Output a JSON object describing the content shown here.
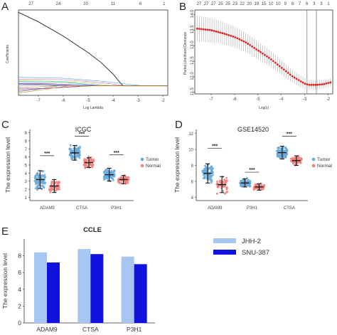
{
  "panel_labels": {
    "A": "A",
    "B": "B",
    "C": "C",
    "D": "D",
    "E": "E"
  },
  "colors": {
    "tumor": "#6aa9d8",
    "normal": "#ef7f7b",
    "jhh2": "#a7c6f1",
    "snu387": "#1212e0",
    "cv_points": "#e02020"
  },
  "chart_data": [
    {
      "id": "A",
      "type": "line",
      "xlabel": "Log Lambda",
      "ylabel": "Coefficients",
      "top_ticks": [
        "27",
        "24",
        "20",
        "11",
        "6",
        "1"
      ],
      "xticks": [
        "-7",
        "-6",
        "-5",
        "-4",
        "-3",
        "-2"
      ],
      "xlim": [
        -7.8,
        -1.8
      ],
      "ylim": [
        -0.2,
        1.6
      ],
      "series": [
        {
          "color": "#222222",
          "x": [
            -7.8,
            -7,
            -6,
            -5,
            -4.5,
            -4,
            -3.8,
            -3.6
          ],
          "y": [
            1.55,
            1.35,
            1.05,
            0.7,
            0.5,
            0.25,
            0.12,
            0.0
          ]
        },
        {
          "color": "#3a9ad9",
          "x": [
            -7.8,
            -6,
            -4.5,
            -3.5,
            -2.8
          ],
          "y": [
            0.18,
            0.16,
            0.1,
            0.04,
            0.0
          ]
        },
        {
          "color": "#e060c0",
          "x": [
            -7.8,
            -6,
            -5,
            -4.2,
            -3.5
          ],
          "y": [
            0.14,
            0.13,
            0.09,
            0.05,
            0.0
          ]
        },
        {
          "color": "#9acd32",
          "x": [
            -7.8,
            -6.5,
            -5,
            -4
          ],
          "y": [
            0.11,
            0.1,
            0.06,
            0.0
          ]
        },
        {
          "color": "#20b2aa",
          "x": [
            -7.8,
            -6,
            -5.2,
            -4.6
          ],
          "y": [
            0.09,
            0.08,
            0.04,
            0.0
          ]
        },
        {
          "color": "#ff7f50",
          "x": [
            -7.8,
            -6.5,
            -5.5
          ],
          "y": [
            0.07,
            0.05,
            0.0
          ]
        },
        {
          "color": "#1e3cff",
          "x": [
            -7.8,
            -6.5,
            -5,
            -4.3
          ],
          "y": [
            0.05,
            0.04,
            0.02,
            0.0
          ]
        },
        {
          "color": "#8a2be2",
          "x": [
            -7.8,
            -7,
            -6,
            -5.5
          ],
          "y": [
            0.04,
            0.03,
            0.01,
            0.0
          ]
        },
        {
          "color": "#2e8b57",
          "x": [
            -7.8,
            -6.8,
            -6
          ],
          "y": [
            0.02,
            0.02,
            0.0
          ]
        },
        {
          "color": "#d2691e",
          "x": [
            -7.8,
            -7,
            -6.3
          ],
          "y": [
            -0.03,
            -0.02,
            0.0
          ]
        },
        {
          "color": "#4682b4",
          "x": [
            -7.8,
            -6.5,
            -5.5,
            -4.8
          ],
          "y": [
            -0.06,
            -0.05,
            -0.02,
            0.0
          ]
        },
        {
          "color": "#c71585",
          "x": [
            -7.8,
            -6.5,
            -5.2
          ],
          "y": [
            -0.09,
            -0.05,
            0.0
          ]
        },
        {
          "color": "#708090",
          "x": [
            -7.8,
            -7,
            -6.2
          ],
          "y": [
            -0.12,
            -0.07,
            0.0
          ]
        },
        {
          "color": "#b8860b",
          "x": [
            -7.8,
            -6.8,
            -5.8
          ],
          "y": [
            -0.15,
            -0.08,
            0.0
          ]
        }
      ]
    },
    {
      "id": "B",
      "type": "scatter",
      "xlabel": "Log(λ)",
      "ylabel": "Partial Likelihood Deviance",
      "top_ticks": [
        "27",
        "27",
        "27",
        "25",
        "25",
        "23",
        "22",
        "20",
        "19",
        "15",
        "10",
        "10",
        "9",
        "8",
        "7",
        "6",
        "3",
        "3",
        "1"
      ],
      "xticks": [
        "-7",
        "-6",
        "-5",
        "-4",
        "-3",
        "-2"
      ],
      "yticks": [
        "11.5",
        "12.0",
        "12.5",
        "13.0",
        "13.5",
        "14.0"
      ],
      "xlim": [
        -7.7,
        -1.8
      ],
      "ylim": [
        11.45,
        14.15
      ],
      "vlines": [
        -2.9,
        -2.5
      ],
      "curve": {
        "x": [
          -7.6,
          -7,
          -6.5,
          -6,
          -5.5,
          -5,
          -4.5,
          -4,
          -3.5,
          -3,
          -2.8,
          -2.5,
          -2.2,
          -1.9
        ],
        "y": [
          13.55,
          13.5,
          13.4,
          13.28,
          13.1,
          12.85,
          12.6,
          12.3,
          12.0,
          11.78,
          11.74,
          11.74,
          11.76,
          11.82
        ]
      }
    },
    {
      "id": "C",
      "type": "scatter",
      "title": "ICGC",
      "ylabel": "The expression level",
      "categories": [
        "ADAM9",
        "CTSA",
        "P3H1"
      ],
      "yticks": [
        "1",
        "2",
        "3",
        "4",
        "5",
        "6",
        "7",
        "8",
        "9"
      ],
      "ylim": [
        0.6,
        9.4
      ],
      "legend": [
        "Tumor",
        "Normal"
      ],
      "significance": [
        "***",
        "***",
        "***"
      ],
      "series": [
        {
          "name": "Tumor",
          "mean": [
            3.2,
            6.5,
            3.8
          ],
          "sd": [
            1.1,
            0.9,
            0.8
          ],
          "range": [
            [
              1,
              5.8
            ],
            [
              4.8,
              8.2
            ],
            [
              2.3,
              5.9
            ]
          ]
        },
        {
          "name": "Normal",
          "mean": [
            2.4,
            5.3,
            3.2
          ],
          "sd": [
            0.8,
            0.6,
            0.5
          ],
          "range": [
            [
              1,
              4.2
            ],
            [
              4.2,
              6.4
            ],
            [
              2.4,
              4.2
            ]
          ]
        }
      ]
    },
    {
      "id": "D",
      "type": "scatter",
      "title": "GSE14520",
      "ylabel": "The expression level",
      "categories": [
        "ADAM9",
        "P3H1",
        "CTSA"
      ],
      "yticks": [
        "4",
        "6",
        "8",
        "10",
        "12"
      ],
      "ylim": [
        3.6,
        12.5
      ],
      "legend": [
        "Tumor",
        "Normal"
      ],
      "significance": [
        "***",
        "***",
        "***"
      ],
      "series": [
        {
          "name": "Tumor",
          "mean": [
            7.0,
            5.8,
            9.6
          ],
          "sd": [
            1.2,
            0.5,
            0.8
          ],
          "range": [
            [
              4.2,
              9.8
            ],
            [
              4.9,
              6.8
            ],
            [
              7.8,
              11.3
            ]
          ]
        },
        {
          "name": "Normal",
          "mean": [
            5.6,
            5.3,
            8.6
          ],
          "sd": [
            1.0,
            0.4,
            0.6
          ],
          "range": [
            [
              4.0,
              8.0
            ],
            [
              4.5,
              6.2
            ],
            [
              7.5,
              9.8
            ]
          ]
        }
      ]
    },
    {
      "id": "E",
      "type": "bar",
      "title": "CCLE",
      "ylabel": "The expression level",
      "categories": [
        "ADAM9",
        "CTSA",
        "P3H1"
      ],
      "yticks": [
        "0",
        "2",
        "4",
        "6",
        "8"
      ],
      "ylim": [
        0,
        10
      ],
      "series": [
        {
          "name": "JHH-2",
          "values": [
            8.4,
            8.8,
            7.9
          ]
        },
        {
          "name": "SNU-387",
          "values": [
            7.2,
            8.2,
            7.0
          ]
        }
      ]
    }
  ]
}
